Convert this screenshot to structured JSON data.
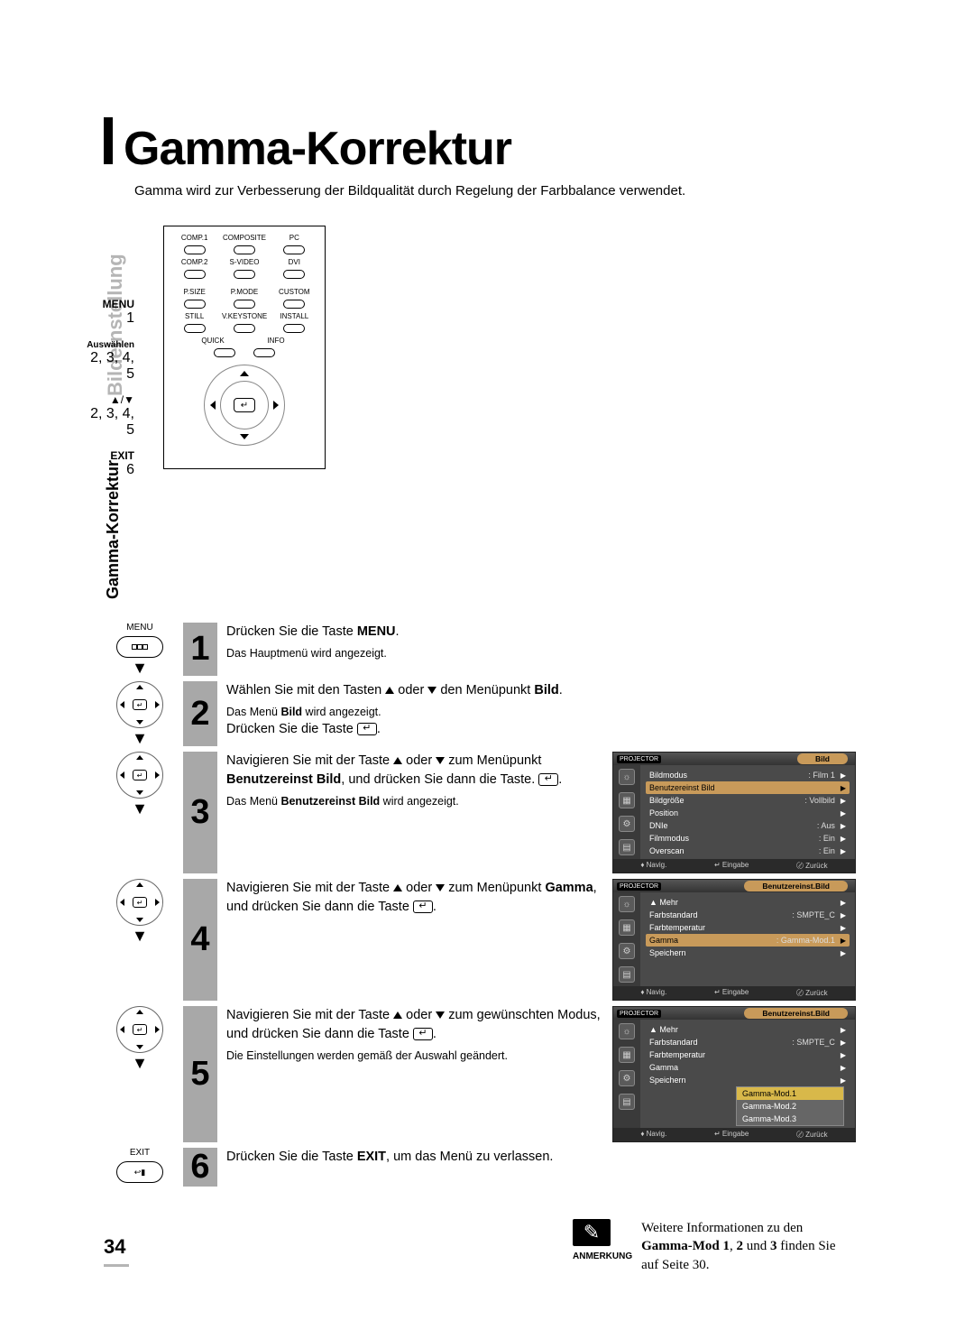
{
  "page": {
    "title": "Gamma-Korrektur",
    "subtitle": "Gamma wird zur Verbesserung der Bildqualität durch Regelung der Farbbalance verwendet.",
    "side_tab": "Bildeinstellung",
    "side_tab2": "Gamma-Korrektur",
    "page_number": "34"
  },
  "remote": {
    "menu_lbl": "MENU",
    "menu_num": "1",
    "select_lbl": "Auswählen",
    "select_num": "2, 3, 4, 5",
    "arrows_sym": "▲/▼",
    "arrows_num": "2, 3, 4, 5",
    "exit_lbl": "EXIT",
    "exit_num": "6",
    "row1": [
      "COMP.1",
      "COMPOSITE",
      "PC"
    ],
    "row2": [
      "COMP.2",
      "S-VIDEO",
      "DVI"
    ],
    "row3": [
      "P.SIZE",
      "P.MODE",
      "CUSTOM"
    ],
    "row4": [
      "STILL",
      "V.KEYSTONE",
      "INSTALL"
    ],
    "row5": [
      "QUICK",
      "INFO"
    ],
    "corner1": "MENU",
    "corner2": "EXIT"
  },
  "steps": [
    {
      "num": "1",
      "icon": "menu",
      "icon_label": "MENU",
      "main": "Drücken Sie die Taste <b>MENU</b>.",
      "note": "Das Hauptmenü wird angezeigt."
    },
    {
      "num": "2",
      "icon": "dpad",
      "main": "Wählen Sie mit den Tasten ▲ oder ▼ den Menüpunkt <b>Bild</b>.",
      "note": "Das Menü <b>Bild</b> wird angezeigt.",
      "main2": "Drücken Sie die Taste ↵."
    },
    {
      "num": "3",
      "icon": "dpad",
      "main": "Navigieren Sie mit der Taste ▲ oder ▼ zum Menüpunkt <b>Benutzereinst Bild</b>, und drücken Sie dann die Taste. ↵.",
      "note": "Das Menü <b>Benutzereinst Bild</b> wird angezeigt."
    },
    {
      "num": "4",
      "icon": "dpad",
      "main": "Navigieren Sie mit der Taste ▲ oder ▼ zum Menüpunkt <b>Gamma</b>, und drücken Sie dann die Taste ↵."
    },
    {
      "num": "5",
      "icon": "dpad",
      "main": "Navigieren Sie mit der Taste ▲ oder ▼ zum gewünschten Modus, und drücken Sie dann die Taste ↵.",
      "note": "Die Einstellungen werden gemäß der Auswahl geändert."
    },
    {
      "num": "6",
      "icon": "exit",
      "icon_label": "EXIT",
      "main": "Drücken Sie die Taste <b>EXIT</b>, um das Menü zu verlassen."
    }
  ],
  "osd1": {
    "title": "Bild",
    "projector": "PROJECTOR",
    "rows": [
      {
        "lbl": "Bildmodus",
        "val": ": Film 1"
      },
      {
        "lbl": "Benutzereinst Bild",
        "val": "",
        "sel": true
      },
      {
        "lbl": "Bildgröße",
        "val": ": Vollbild"
      },
      {
        "lbl": "Position",
        "val": ""
      },
      {
        "lbl": "DNIe",
        "val": ": Aus"
      },
      {
        "lbl": "Filmmodus",
        "val": ": Ein"
      },
      {
        "lbl": "Overscan",
        "val": ": Ein"
      }
    ],
    "foot": [
      "♦ Navig.",
      "↵ Eingabe",
      "〄 Zurück"
    ]
  },
  "osd2": {
    "title": "Benutzereinst.Bild",
    "projector": "PROJECTOR",
    "rows": [
      {
        "lbl": "▲ Mehr",
        "val": ""
      },
      {
        "lbl": "Farbstandard",
        "val": ": SMPTE_C"
      },
      {
        "lbl": "Farbtemperatur",
        "val": ""
      },
      {
        "lbl": "Gamma",
        "val": ": Gamma-Mod.1",
        "sel": true
      },
      {
        "lbl": "Speichern",
        "val": ""
      }
    ],
    "foot": [
      "♦ Navig.",
      "↵ Eingabe",
      "〄 Zurück"
    ]
  },
  "osd3": {
    "title": "Benutzereinst.Bild",
    "projector": "PROJECTOR",
    "rows": [
      {
        "lbl": "▲ Mehr",
        "val": ""
      },
      {
        "lbl": "Farbstandard",
        "val": ": SMPTE_C"
      },
      {
        "lbl": "Farbtemperatur",
        "val": ""
      },
      {
        "lbl": "Gamma",
        "val": ""
      },
      {
        "lbl": "Speichern",
        "val": ""
      }
    ],
    "dropdown": [
      "Gamma-Mod.1",
      "Gamma-Mod.2",
      "Gamma-Mod.3"
    ],
    "foot": [
      "♦ Navig.",
      "↵ Eingabe",
      "〄 Zurück"
    ]
  },
  "note": {
    "label": "ANMERKUNG",
    "text": "Weitere Informationen zu den <b>Gamma-Mod 1</b>, <b>2</b> und <b>3</b> finden Sie auf Seite 30."
  }
}
